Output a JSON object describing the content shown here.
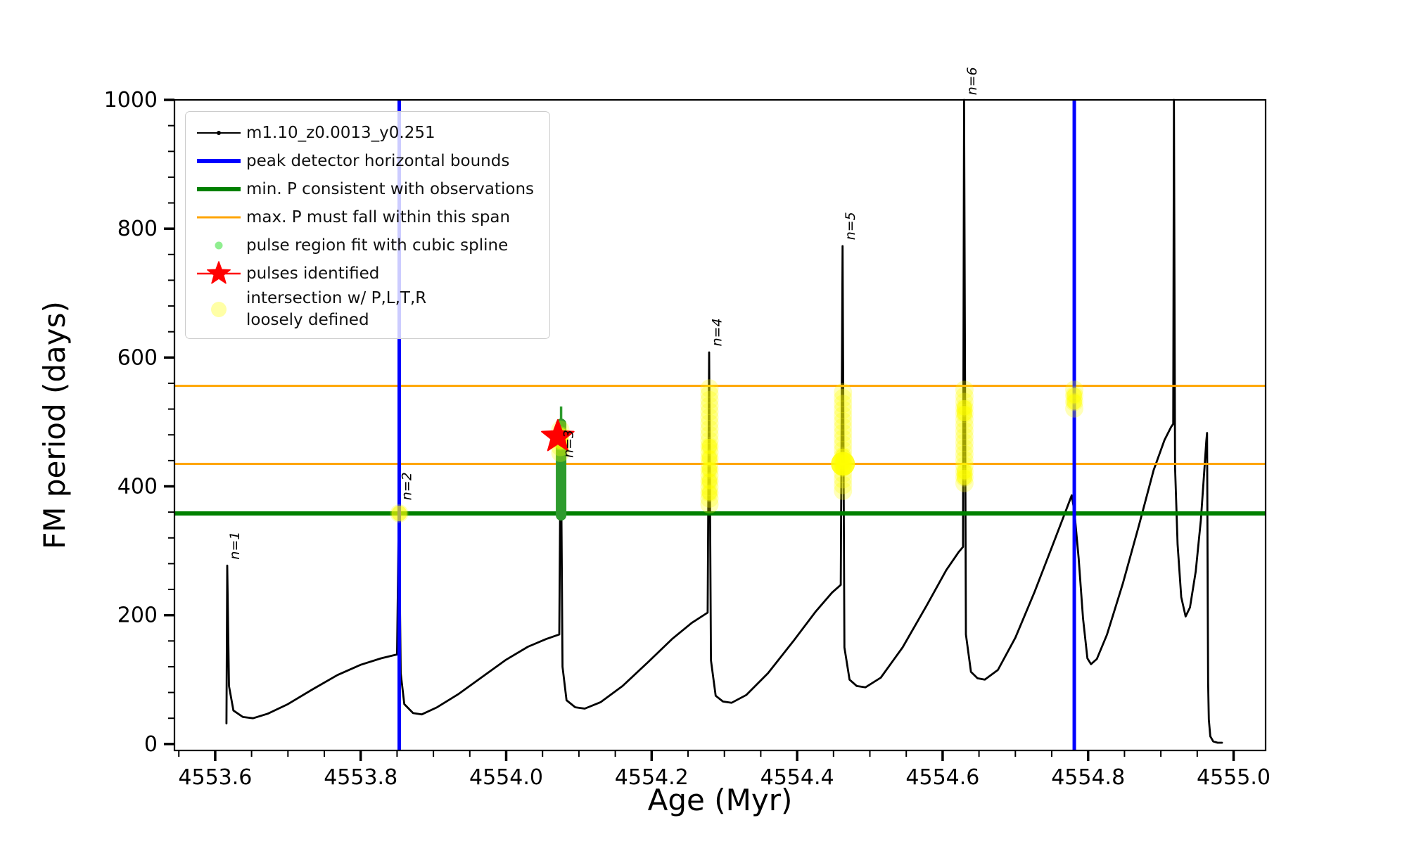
{
  "colors": {
    "curve": "#000000",
    "peak_bounds": "#0000ff",
    "min_p": "#008000",
    "max_p_span": "#ffa500",
    "spline_dot": "#90ee90",
    "spline_bar": "#2d9b2d",
    "pulses": "#ff0000",
    "intersection": "#ffff00",
    "legend_border": "#cccccc"
  },
  "axes": {
    "xlabel": "Age (Myr)",
    "ylabel": "FM period (days)",
    "xlim": [
      4553.544,
      4555.044
    ],
    "ylim": [
      -10,
      1000
    ],
    "xticks": [
      4553.6,
      4553.8,
      4554.0,
      4554.2,
      4554.4,
      4554.6,
      4554.8,
      4555.0
    ],
    "xtick_labels": [
      "4553.6",
      "4553.8",
      "4554.0",
      "4554.2",
      "4554.4",
      "4554.6",
      "4554.8",
      "4555.0"
    ],
    "x_minor_step": 0.05,
    "yticks": [
      0,
      200,
      400,
      600,
      800,
      1000
    ],
    "ytick_labels": [
      "0",
      "200",
      "400",
      "600",
      "800",
      "1000"
    ],
    "y_minor_step": 40
  },
  "legend": {
    "entries": [
      {
        "label": "m1.10_z0.0013_y0.251",
        "marker": "line-dot",
        "color": "#000000"
      },
      {
        "label": "peak detector horizontal bounds",
        "marker": "thick-line",
        "color": "#0000ff"
      },
      {
        "label": "min. P consistent with observations",
        "marker": "thick-line",
        "color": "#008000"
      },
      {
        "label": "max. P must fall within this span",
        "marker": "line",
        "color": "#ffa500"
      },
      {
        "label": "pulse region fit with cubic spline",
        "marker": "dot",
        "color": "#90ee90"
      },
      {
        "label": "pulses identified",
        "marker": "star",
        "color": "#ff0000"
      },
      {
        "label": "intersection w/ P,L,T,R\nloosely defined",
        "marker": "big-dot",
        "color": "#ffff00"
      }
    ]
  },
  "chart_data": {
    "type": "line",
    "series_label": "m1.10_z0.0013_y0.251",
    "xlabel": "Age (Myr)",
    "ylabel": "FM period (days)",
    "xlim": [
      4553.544,
      4555.044
    ],
    "ylim": [
      -10,
      1000
    ],
    "green_hline_days": 358,
    "orange_hlines_days": [
      435,
      556
    ],
    "blue_vlines_age": [
      4553.853,
      4554.781
    ],
    "pulses": [
      {
        "label": "n=1",
        "age": 4553.6165,
        "peak": 277,
        "label_days": 282
      },
      {
        "label": "n=2",
        "age": 4553.853,
        "peak": 369,
        "label_days": 374
      },
      {
        "label": "n=3",
        "age": 4554.0755,
        "peak": 500,
        "label_days": 440
      },
      {
        "label": "n=4",
        "age": 4554.2795,
        "peak": 608,
        "label_days": 613
      },
      {
        "label": "n=5",
        "age": 4554.463,
        "peak": 773,
        "label_days": 778
      },
      {
        "label": "n=6",
        "age": 4554.63,
        "peak": 1000,
        "label_days": 1003
      }
    ],
    "unlabeled_spike": {
      "age": 4554.918,
      "peak": 1000
    },
    "star": {
      "age": 4554.071,
      "days": 477
    },
    "spline_region": {
      "age": 4554.0755,
      "from_days": 355,
      "to_days": 497,
      "thin_to_days": 524
    },
    "yellow_groups": [
      {
        "age": 4553.853,
        "days": [
          358
        ],
        "bright": [
          358
        ]
      },
      {
        "age": 4554.0745,
        "days": [
          452,
          461,
          470,
          479,
          488
        ],
        "bright": [
          470,
          479
        ]
      },
      {
        "age": 4554.2795,
        "days": [
          372,
          381,
          390,
          399,
          408,
          417,
          426,
          435,
          444,
          453,
          462,
          471,
          480,
          489,
          498,
          507,
          516,
          525,
          534,
          543,
          552
        ],
        "bright": [
          390,
          408,
          426,
          444,
          462
        ]
      },
      {
        "age": 4554.463,
        "days": [
          393,
          402,
          411,
          420,
          429,
          435,
          438,
          447,
          456,
          465,
          474,
          483,
          492,
          501,
          510,
          519,
          528,
          537,
          546
        ],
        "bright": [
          429,
          438,
          447
        ],
        "big_bright": [
          435
        ]
      },
      {
        "age": 4554.63,
        "days": [
          405,
          414,
          423,
          432,
          441,
          450,
          459,
          468,
          477,
          486,
          495,
          504,
          513,
          522,
          531,
          540,
          550
        ],
        "bright": [
          414,
          423,
          513,
          522
        ]
      },
      {
        "age": 4554.781,
        "days": [
          521,
          531,
          541,
          550
        ],
        "bright": [
          531,
          541
        ]
      }
    ],
    "curve": [
      [
        4553.6155,
        32
      ],
      [
        4553.6165,
        277
      ],
      [
        4553.619,
        90
      ],
      [
        4553.625,
        52
      ],
      [
        4553.638,
        42
      ],
      [
        4553.652,
        40
      ],
      [
        4553.672,
        47
      ],
      [
        4553.7,
        62
      ],
      [
        4553.734,
        85
      ],
      [
        4553.768,
        107
      ],
      [
        4553.8,
        123
      ],
      [
        4553.828,
        133
      ],
      [
        4553.85,
        139
      ],
      [
        4553.8525,
        369
      ],
      [
        4553.855,
        110
      ],
      [
        4553.86,
        62
      ],
      [
        4553.872,
        48
      ],
      [
        4553.884,
        46
      ],
      [
        4553.905,
        57
      ],
      [
        4553.935,
        78
      ],
      [
        4553.968,
        105
      ],
      [
        4554.0,
        131
      ],
      [
        4554.03,
        151
      ],
      [
        4554.055,
        163
      ],
      [
        4554.073,
        170
      ],
      [
        4554.075,
        500
      ],
      [
        4554.0775,
        120
      ],
      [
        4554.083,
        68
      ],
      [
        4554.095,
        57
      ],
      [
        4554.108,
        55
      ],
      [
        4554.13,
        65
      ],
      [
        4554.16,
        90
      ],
      [
        4554.195,
        127
      ],
      [
        4554.228,
        163
      ],
      [
        4554.255,
        188
      ],
      [
        4554.277,
        204
      ],
      [
        4554.279,
        608
      ],
      [
        4554.2815,
        130
      ],
      [
        4554.288,
        75
      ],
      [
        4554.298,
        66
      ],
      [
        4554.31,
        64
      ],
      [
        4554.33,
        76
      ],
      [
        4554.36,
        110
      ],
      [
        4554.395,
        160
      ],
      [
        4554.425,
        205
      ],
      [
        4554.448,
        235
      ],
      [
        4554.46,
        247
      ],
      [
        4554.4625,
        773
      ],
      [
        4554.465,
        150
      ],
      [
        4554.472,
        100
      ],
      [
        4554.482,
        90
      ],
      [
        4554.494,
        88
      ],
      [
        4554.515,
        103
      ],
      [
        4554.545,
        150
      ],
      [
        4554.578,
        215
      ],
      [
        4554.605,
        270
      ],
      [
        4554.622,
        298
      ],
      [
        4554.628,
        306
      ],
      [
        4554.6295,
        1000
      ],
      [
        4554.632,
        170
      ],
      [
        4554.639,
        112
      ],
      [
        4554.648,
        102
      ],
      [
        4554.658,
        100
      ],
      [
        4554.676,
        115
      ],
      [
        4554.7,
        165
      ],
      [
        4554.726,
        235
      ],
      [
        4554.75,
        305
      ],
      [
        4554.768,
        358
      ],
      [
        4554.7775,
        386
      ],
      [
        4554.781,
        362
      ],
      [
        4554.787,
        288
      ],
      [
        4554.793,
        195
      ],
      [
        4554.799,
        133
      ],
      [
        4554.804,
        124
      ],
      [
        4554.812,
        132
      ],
      [
        4554.826,
        170
      ],
      [
        4554.848,
        250
      ],
      [
        4554.87,
        340
      ],
      [
        4554.89,
        425
      ],
      [
        4554.905,
        472
      ],
      [
        4554.914,
        492
      ],
      [
        4554.917,
        497
      ],
      [
        4554.918,
        1000
      ],
      [
        4554.9195,
        430
      ],
      [
        4554.923,
        310
      ],
      [
        4554.928,
        228
      ],
      [
        4554.934,
        198
      ],
      [
        4554.94,
        212
      ],
      [
        4554.948,
        268
      ],
      [
        4554.955,
        348
      ],
      [
        4554.96,
        428
      ],
      [
        4554.9625,
        470
      ],
      [
        4554.9635,
        483
      ],
      [
        4554.9645,
        210
      ],
      [
        4554.965,
        95
      ],
      [
        4554.966,
        38
      ],
      [
        4554.968,
        12
      ],
      [
        4554.972,
        4
      ],
      [
        4554.978,
        2
      ],
      [
        4554.984,
        2
      ]
    ]
  }
}
